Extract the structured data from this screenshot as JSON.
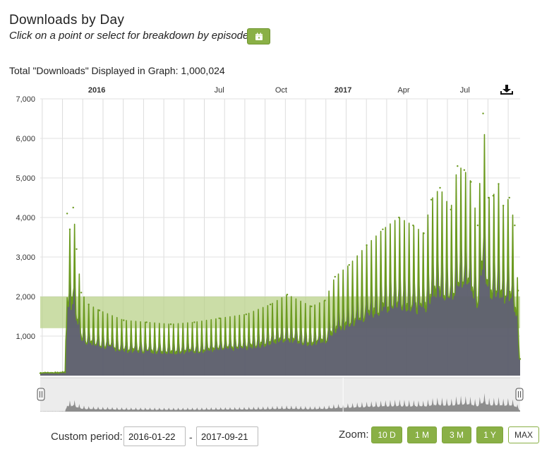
{
  "header": {
    "title": "Downloads by Day",
    "subtitle": "Click on a point or select for breakdown by episode:",
    "total_text": "Total \"Downloads\" Displayed in Graph: 1,000,024"
  },
  "icons": {
    "calendar": "calendar-icon",
    "download": "download-icon"
  },
  "colors": {
    "line": "#6b9a1f",
    "area": "#5d5f6c",
    "band": "#b9d28a",
    "button": "#8ab046",
    "navigator": "#8d8d8d"
  },
  "chart_data": {
    "type": "area",
    "title": "Downloads by Day",
    "x_ticks": [
      {
        "label": "2016",
        "date": "2016-01-01",
        "bold": true
      },
      {
        "label": "Jul",
        "date": "2016-07-01",
        "bold": false
      },
      {
        "label": "Oct",
        "date": "2016-10-01",
        "bold": false
      },
      {
        "label": "2017",
        "date": "2017-01-01",
        "bold": true
      },
      {
        "label": "Apr",
        "date": "2017-04-01",
        "bold": false
      },
      {
        "label": "Jul",
        "date": "2017-07-01",
        "bold": false
      }
    ],
    "y_ticks": [
      {
        "value": 1000,
        "label": "1,000"
      },
      {
        "value": 2000,
        "label": "2,000"
      },
      {
        "value": 3000,
        "label": "3,000"
      },
      {
        "value": 4000,
        "label": "4,000"
      },
      {
        "value": 5000,
        "label": "5,000"
      },
      {
        "value": 6000,
        "label": "6,000"
      },
      {
        "value": 7000,
        "label": "7,000"
      }
    ],
    "ylim": [
      0,
      7000
    ],
    "xlim": [
      "2015-10-09",
      "2017-09-21"
    ],
    "plot_band": {
      "from": 1200,
      "to": 2000
    },
    "series": [
      {
        "points": [
          [
            "2015-10-09",
            60
          ],
          [
            "2015-11-05",
            60
          ],
          [
            "2015-11-15",
            80
          ],
          [
            "2015-11-18",
            4100
          ],
          [
            "2015-11-22",
            3700
          ],
          [
            "2015-11-27",
            4250
          ],
          [
            "2015-12-02",
            3200
          ],
          [
            "2015-12-09",
            2100
          ],
          [
            "2015-12-20",
            1800
          ],
          [
            "2016-01-05",
            1650
          ],
          [
            "2016-02-10",
            1400
          ],
          [
            "2016-03-15",
            1350
          ],
          [
            "2016-04-20",
            1300
          ],
          [
            "2016-05-25",
            1350
          ],
          [
            "2016-07-01",
            1450
          ],
          [
            "2016-08-10",
            1550
          ],
          [
            "2016-09-15",
            1800
          ],
          [
            "2016-10-10",
            2050
          ],
          [
            "2016-11-15",
            1750
          ],
          [
            "2016-12-05",
            1900
          ],
          [
            "2016-12-20",
            2500
          ],
          [
            "2017-01-10",
            2800
          ],
          [
            "2017-02-05",
            3300
          ],
          [
            "2017-03-01",
            3700
          ],
          [
            "2017-03-25",
            4000
          ],
          [
            "2017-04-15",
            3800
          ],
          [
            "2017-05-01",
            3600
          ],
          [
            "2017-05-12",
            4450
          ],
          [
            "2017-05-25",
            4750
          ],
          [
            "2017-06-10",
            4200
          ],
          [
            "2017-06-20",
            5300
          ],
          [
            "2017-06-30",
            5200
          ],
          [
            "2017-07-10",
            4900
          ],
          [
            "2017-07-20",
            3800
          ],
          [
            "2017-07-28",
            6630
          ],
          [
            "2017-08-05",
            4500
          ],
          [
            "2017-08-12",
            4550
          ],
          [
            "2017-08-20",
            4850
          ],
          [
            "2017-08-27",
            4300
          ],
          [
            "2017-09-05",
            4500
          ],
          [
            "2017-09-13",
            3800
          ],
          [
            "2017-09-18",
            2150
          ],
          [
            "2017-09-21",
            420
          ]
        ]
      }
    ],
    "navigator": {
      "series_shown": true
    }
  },
  "controls": {
    "custom_period_label": "Custom period:",
    "start_date": "2016-01-22",
    "end_date": "2017-09-21",
    "separator": "-",
    "zoom_label": "Zoom:",
    "zoom_buttons": [
      "10 D",
      "1 M",
      "3 M",
      "1 Y",
      "MAX"
    ]
  }
}
